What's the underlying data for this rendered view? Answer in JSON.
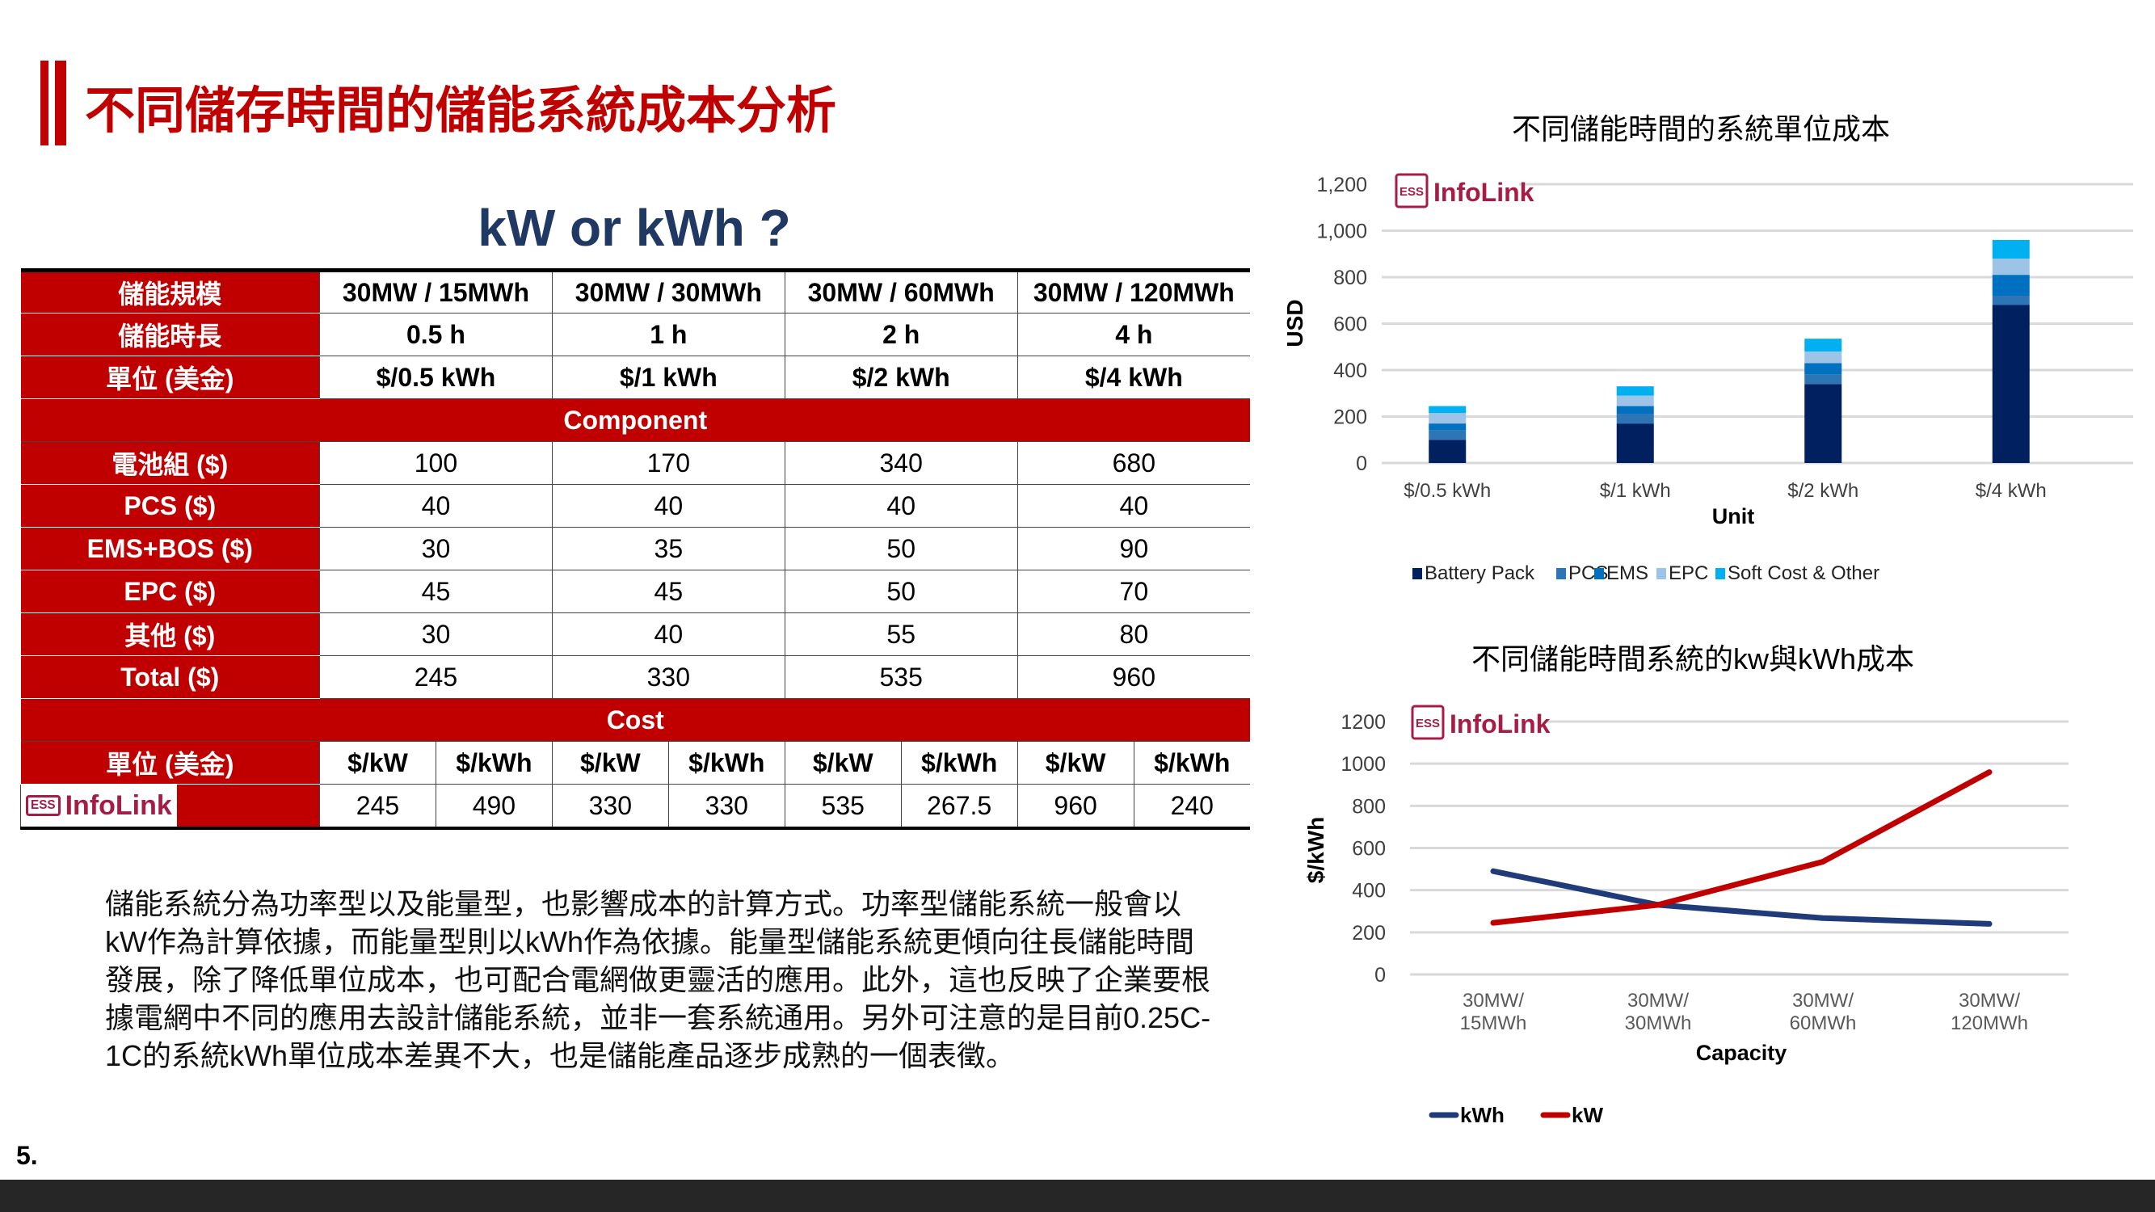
{
  "title": "不同儲存時間的儲能系統成本分析",
  "subtitle": "kW or kWh ?",
  "table": {
    "header_rows": [
      {
        "label": "儲能規模",
        "values": [
          "30MW / 15MWh",
          "30MW / 30MWh",
          "30MW / 60MWh",
          "30MW / 120MWh"
        ]
      },
      {
        "label": "儲能時長",
        "values": [
          "0.5 h",
          "1 h",
          "2 h",
          "4 h"
        ]
      },
      {
        "label": "單位 (美金)",
        "values": [
          "$/0.5 kWh",
          "$/1 kWh",
          "$/2 kWh",
          "$/4 kWh"
        ]
      }
    ],
    "component_title": "Component",
    "component_rows": [
      {
        "label": "電池組 ($)",
        "values": [
          "100",
          "170",
          "340",
          "680"
        ]
      },
      {
        "label": "PCS ($)",
        "values": [
          "40",
          "40",
          "40",
          "40"
        ]
      },
      {
        "label": "EMS+BOS ($)",
        "values": [
          "30",
          "35",
          "50",
          "90"
        ]
      },
      {
        "label": "EPC ($)",
        "values": [
          "45",
          "45",
          "50",
          "70"
        ]
      },
      {
        "label": "其他 ($)",
        "values": [
          "30",
          "40",
          "55",
          "80"
        ]
      },
      {
        "label": "Total ($)",
        "values": [
          "245",
          "330",
          "535",
          "960"
        ]
      }
    ],
    "cost_title": "Cost",
    "cost_unit_label": "單位 (美金)",
    "cost_units": [
      "$/kW",
      "$/kWh",
      "$/kW",
      "$/kWh",
      "$/kW",
      "$/kWh",
      "$/kW",
      "$/kWh"
    ],
    "cost_values": [
      "245",
      "490",
      "330",
      "330",
      "535",
      "267.5",
      "960",
      "240"
    ]
  },
  "logo": {
    "badge": "ESS",
    "name": "InfoLink"
  },
  "paragraph": "儲能系統分為功率型以及能量型，也影響成本的計算方式。功率型儲能系統一般會以kW作為計算依據，而能量型則以kWh作為依據。能量型儲能系統更傾向往長儲能時間發展，除了降低單位成本，也可配合電網做更靈活的應用。此外，這也反映了企業要根據電網中不同的應用去設計儲能系統，並非一套系統通用。另外可注意的是目前0.25C-1C的系統kWh單位成本差異不大，也是儲能產品逐步成熟的一個表徵。",
  "page_number": "5.",
  "chart_data": [
    {
      "type": "bar",
      "stacked": true,
      "title": "不同儲能時間的系統單位成本",
      "xlabel": "Unit",
      "ylabel": "USD",
      "categories": [
        "$/0.5 kWh",
        "$/1 kWh",
        "$/2 kWh",
        "$/4 kWh"
      ],
      "ylim": [
        0,
        1200
      ],
      "yticks": [
        "0",
        "200",
        "400",
        "600",
        "800",
        "1,000",
        "1,200"
      ],
      "ytick_values": [
        0,
        200,
        400,
        600,
        800,
        1000,
        1200
      ],
      "grid": true,
      "legend": "bottom",
      "series": [
        {
          "name": "Battery Pack",
          "values": [
            100,
            170,
            340,
            680
          ],
          "color": "#002060"
        },
        {
          "name": "PCS",
          "values": [
            40,
            40,
            40,
            40
          ],
          "color": "#2e75b6"
        },
        {
          "name": "EMS",
          "values": [
            30,
            35,
            50,
            90
          ],
          "color": "#0070c0"
        },
        {
          "name": "EPC",
          "values": [
            45,
            45,
            50,
            70
          ],
          "color": "#9dc3e6"
        },
        {
          "name": "Soft Cost & Other",
          "values": [
            30,
            40,
            55,
            80
          ],
          "color": "#00b0f0"
        }
      ]
    },
    {
      "type": "line",
      "title": "不同儲能時間系統的kw與kWh成本",
      "xlabel": "Capacity",
      "ylabel": "$/kWh",
      "categories": [
        [
          "30MW/",
          "15MWh"
        ],
        [
          "30MW/",
          "30MWh"
        ],
        [
          "30MW/",
          "60MWh"
        ],
        [
          "30MW/",
          "120MWh"
        ]
      ],
      "ylim": [
        0,
        1200
      ],
      "yticks": [
        "0",
        "200",
        "400",
        "600",
        "800",
        "1000",
        "1200"
      ],
      "ytick_values": [
        0,
        200,
        400,
        600,
        800,
        1000,
        1200
      ],
      "grid": true,
      "legend": "bottom",
      "series": [
        {
          "name": "kWh",
          "values": [
            490,
            330,
            267.5,
            240
          ],
          "color": "#1f3b7a"
        },
        {
          "name": "kW",
          "values": [
            245,
            330,
            535,
            960
          ],
          "color": "#c00000"
        }
      ]
    }
  ]
}
